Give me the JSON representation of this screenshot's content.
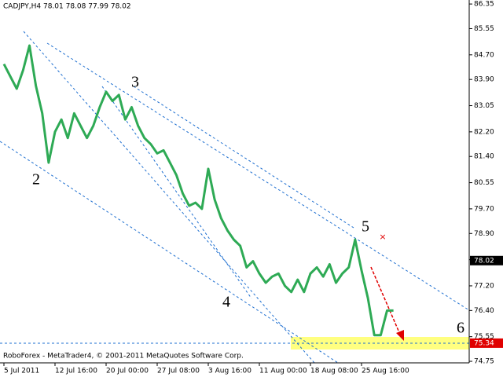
{
  "chart_data": {
    "type": "line",
    "title": "CADJPY,H4  78.01 78.08 77.99 78.02",
    "footer": "RoboForex - MetaTrader4, © 2001-2011 MetaQuotes Software Corp.",
    "annotations": [
      "2",
      "3",
      "4",
      "5",
      "6"
    ],
    "categories": [
      "5 Jul 2011",
      null,
      null,
      null,
      null,
      null,
      null,
      null,
      "12 Jul 16:00",
      null,
      null,
      null,
      null,
      null,
      null,
      null,
      "20 Jul 00:00",
      null,
      null,
      null,
      null,
      null,
      null,
      null,
      "27 Jul 08:00",
      null,
      null,
      null,
      null,
      null,
      null,
      null,
      "3 Aug 16:00",
      null,
      null,
      null,
      null,
      null,
      null,
      null,
      "11 Aug 00:00",
      null,
      null,
      null,
      null,
      null,
      null,
      null,
      "18 Aug 08:00",
      null,
      null,
      null,
      null,
      null,
      null,
      null,
      "25 Aug 16:00",
      null,
      null,
      null,
      null,
      null
    ],
    "series": [
      {
        "name": "CADJPY",
        "color": "#2eaa55",
        "values": [
          84.4,
          84.0,
          83.6,
          84.2,
          85.0,
          83.7,
          82.8,
          81.2,
          82.2,
          82.6,
          82.0,
          82.8,
          82.4,
          82.0,
          82.4,
          83.0,
          83.5,
          83.2,
          83.4,
          82.6,
          83.0,
          82.4,
          82.0,
          81.8,
          81.5,
          81.6,
          81.2,
          80.8,
          80.2,
          79.8,
          79.9,
          79.7,
          81.0,
          80.0,
          79.4,
          79.0,
          78.7,
          78.5,
          77.8,
          78.0,
          77.6,
          77.3,
          77.5,
          77.6,
          77.2,
          77.0,
          77.4,
          77.0,
          77.6,
          77.8,
          77.5,
          77.9,
          77.3,
          77.6,
          77.8,
          78.7,
          77.7,
          76.8,
          75.6,
          75.6,
          76.4,
          76.4
        ]
      }
    ],
    "ylim": [
      74.7,
      86.48
    ],
    "yticks": [
      86.35,
      85.55,
      {
        "value": 84.7,
        "label": "84.70"
      },
      {
        "value": 83.9,
        "label": "83.90"
      },
      83.05,
      {
        "value": 82.2,
        "label": "82.20"
      },
      {
        "value": 81.4,
        "label": "81.40"
      },
      80.55,
      {
        "value": 79.7,
        "label": "79.70"
      },
      {
        "value": 78.9,
        "label": "78.90"
      },
      78.05,
      {
        "value": 77.2,
        "label": "77.20"
      },
      {
        "value": 76.4,
        "label": "76.40"
      },
      75.55,
      74.75
    ],
    "price_marks": [
      {
        "value": 78.02,
        "label": "78.02",
        "color": "#000000"
      },
      {
        "value": 75.34,
        "label": "75.34",
        "color": "#e00000"
      }
    ]
  }
}
